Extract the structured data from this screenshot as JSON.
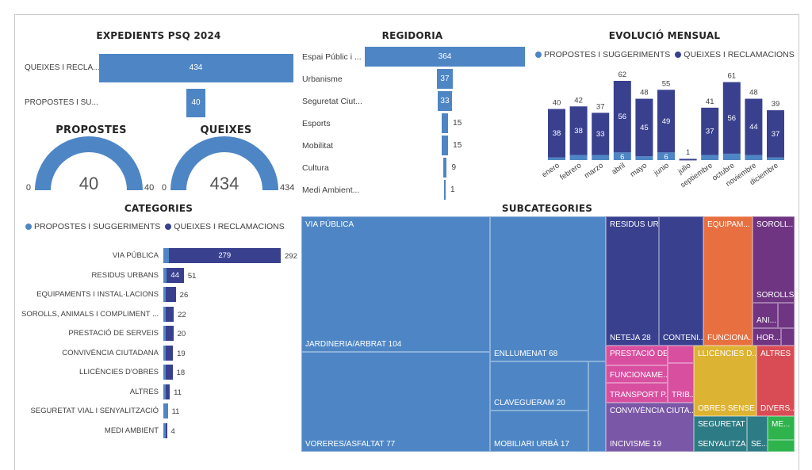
{
  "colors": {
    "propostes": "#4e86c5",
    "queixes": "#39418f",
    "text": "#404040"
  },
  "legend": {
    "propostes": "PROPOSTES I SUGGERIMENTS",
    "queixes": "QUEIXES I RECLAMACIONS"
  },
  "chart_data": [
    {
      "id": "expedients",
      "type": "bar",
      "orientation": "horizontal",
      "title": "EXPEDIENTS PSQ 2024",
      "categories": [
        "QUEIXES I RECLA...",
        "PROPOSTES I SU..."
      ],
      "values": [
        434,
        40
      ]
    },
    {
      "id": "gauge-propostes",
      "type": "gauge",
      "title": "PROPOSTES",
      "value": 40,
      "min": 0,
      "max": 40,
      "value_label": "40",
      "min_label": "0",
      "max_label": "40"
    },
    {
      "id": "gauge-queixes",
      "type": "gauge",
      "title": "QUEIXES",
      "value": 434,
      "min": 0,
      "max": 434,
      "value_label": "434",
      "min_label": "0",
      "max_label": "434"
    },
    {
      "id": "regidoria",
      "type": "bar",
      "orientation": "horizontal-funnel",
      "title": "REGIDORIA",
      "categories": [
        "Espai Públic i ...",
        "Urbanisme",
        "Seguretat Ciut...",
        "Esports",
        "Mobilitat",
        "Cultura",
        "Medi Ambient..."
      ],
      "values": [
        364,
        37,
        33,
        15,
        15,
        9,
        1
      ]
    },
    {
      "id": "evolucio",
      "type": "bar",
      "stacked": true,
      "title": "EVOLUCIÓ MENSUAL",
      "categories": [
        "enero",
        "febrero",
        "marzo",
        "abril",
        "mayo",
        "junio",
        "julio",
        "septiembre",
        "octubre",
        "noviembre",
        "diciembre"
      ],
      "series": [
        {
          "name": "PROPOSTES I SUGGERIMENTS",
          "values": [
            2,
            4,
            4,
            6,
            3,
            6,
            0,
            4,
            5,
            4,
            2
          ],
          "labels": [
            "",
            "",
            "",
            "6",
            "",
            "6",
            "",
            "",
            "",
            "",
            ""
          ]
        },
        {
          "name": "QUEIXES I RECLAMACIONS",
          "values": [
            38,
            38,
            33,
            56,
            45,
            49,
            1,
            37,
            56,
            44,
            37
          ],
          "labels": [
            "38",
            "38",
            "33",
            "56",
            "45",
            "49",
            "",
            "37",
            "56",
            "44",
            "37"
          ]
        }
      ],
      "totals": [
        40,
        42,
        37,
        62,
        48,
        55,
        1,
        41,
        61,
        48,
        39
      ],
      "legend_position": "top-left"
    },
    {
      "id": "categories",
      "type": "bar",
      "orientation": "horizontal",
      "stacked": true,
      "title": "CATEGORIES",
      "categories": [
        "VIA PÚBLICA",
        "RESIDUS URBANS",
        "EQUIPAMENTS I INSTAL·LACIONS",
        "SOROLLS, ANIMALS I COMPLIMENT ...",
        "PRESTACIÓ DE SERVEIS",
        "CONVIVÈNCIA CIUTADANA",
        "LLICÈNCIES D'OBRES",
        "ALTRES",
        "SEGURETAT VIAL I SENYALITZACIÓ",
        "MEDI AMBIENT"
      ],
      "series": [
        {
          "name": "PROPOSTES I SUGGERIMENTS",
          "values": [
            13,
            7,
            1,
            2,
            1,
            1,
            1,
            1,
            11,
            1
          ]
        },
        {
          "name": "QUEIXES I RECLAMACIONS",
          "values": [
            279,
            44,
            25,
            20,
            19,
            18,
            17,
            10,
            0,
            3
          ],
          "labels": [
            "279",
            "44",
            "",
            "",
            "",
            "",
            "",
            "",
            "",
            ""
          ]
        }
      ],
      "totals": [
        292,
        51,
        26,
        22,
        20,
        19,
        18,
        11,
        11,
        4
      ],
      "legend_position": "top-left"
    },
    {
      "id": "subcategories",
      "type": "treemap",
      "title": "SUBCATEGORIES",
      "groups": [
        {
          "name": "VIA PÚBLICA",
          "color": "#4e86c5",
          "items": [
            {
              "label": "JARDINERIA/ARBRAT 104",
              "value": 104
            },
            {
              "label": "VORERES/ASFALTAT 77",
              "value": 77
            },
            {
              "label": "ENLLUMENAT 68",
              "value": 68
            },
            {
              "label": "CLAVEGUERAM 20",
              "value": 20
            },
            {
              "label": "MOBILIARI URBÀ 17",
              "value": 17
            },
            {
              "label": "",
              "value": 6
            }
          ]
        },
        {
          "name": "RESIDUS URBANS",
          "color": "#39418f",
          "items": [
            {
              "label": "NETEJA 28",
              "value": 28
            },
            {
              "label": "CONTENI...",
              "value": 23
            }
          ]
        },
        {
          "name": "EQUIPAM...",
          "color": "#e86f3f",
          "items": [
            {
              "label": "FUNCIONA...",
              "value": 26
            }
          ]
        },
        {
          "name": "SOROLL...",
          "color": "#6f3582",
          "items": [
            {
              "label": "SOROLLS...",
              "value": 12
            },
            {
              "label": "ANI...",
              "value": 5
            },
            {
              "label": "HOR...",
              "value": 3
            }
          ]
        },
        {
          "name": "PRESTACIÓ DE SERV...",
          "color": "#d84fa0",
          "items": [
            {
              "label": "FUNCIONAME...",
              "value": 8
            },
            {
              "label": "TRANSPORT P...",
              "value": 6
            },
            {
              "label": "TRIB...",
              "value": 4
            }
          ]
        },
        {
          "name": "LLICÈNCIES D...",
          "color": "#dcb332",
          "items": [
            {
              "label": "OBRES SENSE P...",
              "value": 18
            }
          ]
        },
        {
          "name": "ALTRES",
          "color": "#d94c55",
          "items": [
            {
              "label": "DIVERS...",
              "value": 11
            }
          ]
        },
        {
          "name": "CONVIVÈNCIA CIUTA...",
          "color": "#7b57a7",
          "items": [
            {
              "label": "INCIVISME 19",
              "value": 19
            }
          ]
        },
        {
          "name": "SEGURETAT VIAL...",
          "color": "#2d7b84",
          "items": [
            {
              "label": "SENYALITZA...",
              "value": 8
            },
            {
              "label": "SE...",
              "value": 3
            }
          ]
        },
        {
          "name": "ME...",
          "color": "#2fb34d",
          "items": [
            {
              "label": "",
              "value": 4
            }
          ]
        }
      ]
    }
  ]
}
